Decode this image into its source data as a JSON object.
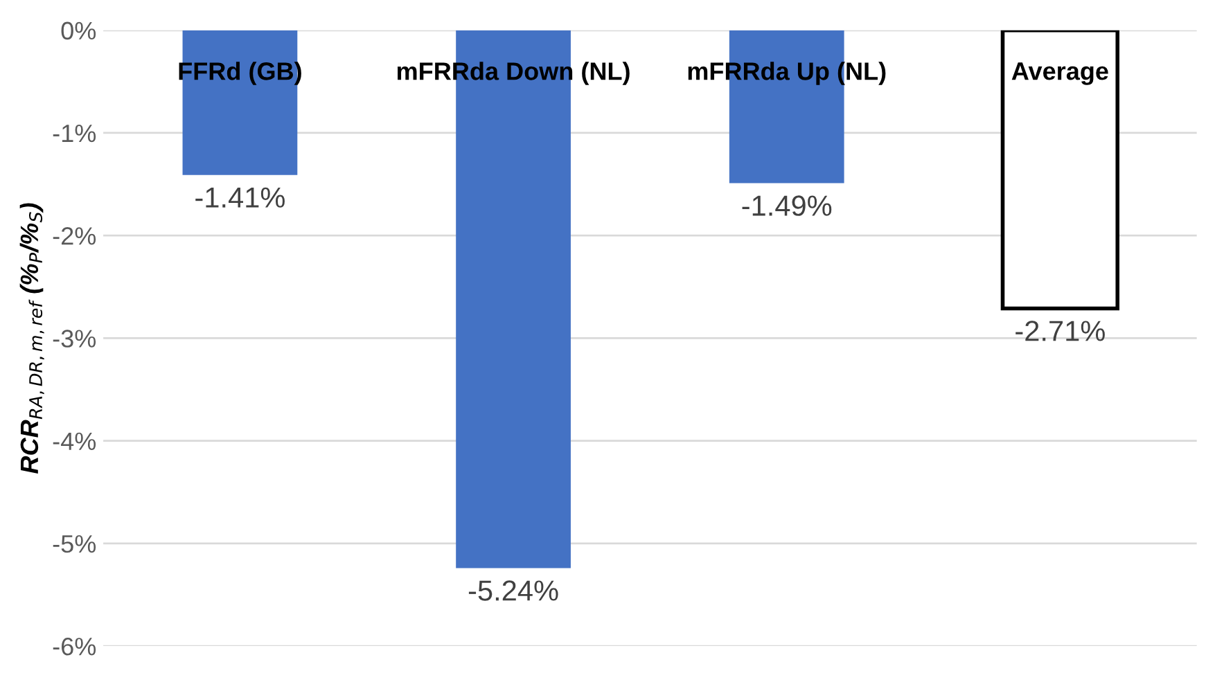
{
  "chart_data": {
    "type": "bar",
    "ylabel": "RCR$_{RA,DR,m,ref}$ (%$_{P}$/%$_{S}$)",
    "categories": [
      "FFRd (GB)",
      "mFRRda Down (NL)",
      "mFRRda Up (NL)",
      "Average"
    ],
    "values": [
      -1.41,
      -5.24,
      -1.49,
      -2.71
    ],
    "colors": [
      "#4472c4",
      "#4472c4",
      "#4472c4",
      "#ffffff"
    ],
    "value_labels": [
      "-1.41%",
      "-5.24%",
      "-1.49%",
      "-2.71%"
    ],
    "ylim": [
      -6,
      0
    ],
    "yticks": [
      {
        "value": 0,
        "label": "0%"
      },
      {
        "value": -1,
        "label": "-1%"
      },
      {
        "value": -2,
        "label": "-2%"
      },
      {
        "value": -3,
        "label": "-3%"
      },
      {
        "value": -4,
        "label": "-4%"
      },
      {
        "value": -5,
        "label": "-5%"
      },
      {
        "value": -6,
        "label": "-6%"
      }
    ],
    "grid": "y"
  }
}
